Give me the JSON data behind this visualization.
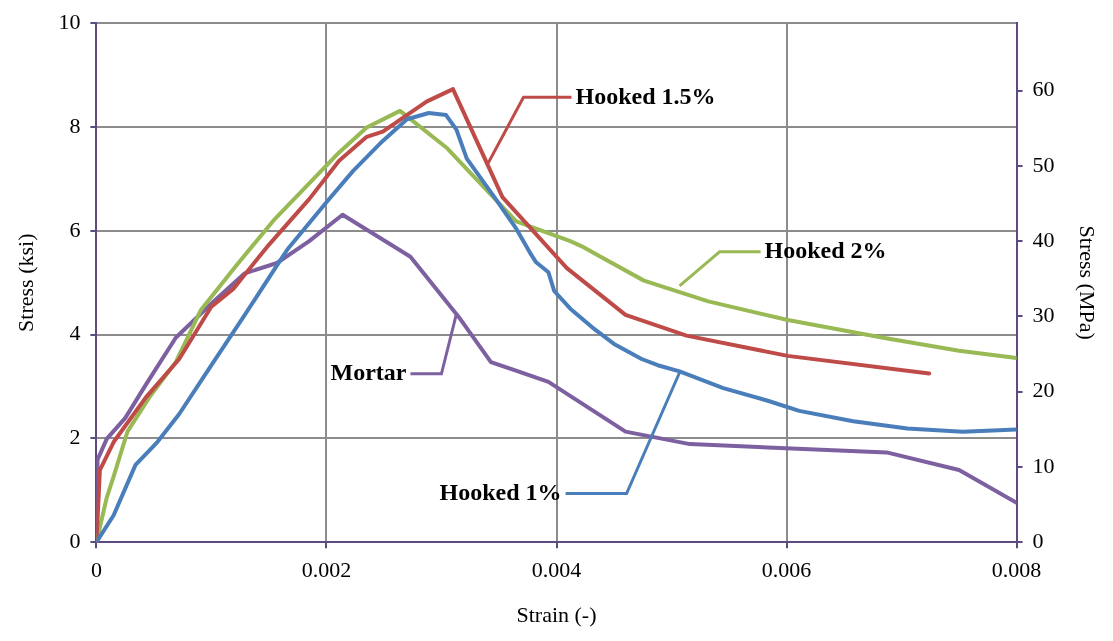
{
  "chart_data": {
    "type": "line",
    "xlabel": "Strain (-)",
    "ylabel": "Stress (ksi)",
    "y2label": "Stress (MPa)",
    "xlim": [
      0,
      0.008
    ],
    "xticks": [
      0,
      0.002,
      0.004,
      0.006,
      0.008
    ],
    "ylim": [
      0,
      10
    ],
    "yticks": [
      0,
      2,
      4,
      6,
      8,
      10
    ],
    "y2lim": [
      0,
      68.95
    ],
    "y2ticks": [
      0,
      10,
      20,
      30,
      40,
      50,
      60
    ],
    "grid": true,
    "marker": "none",
    "line_style": "solid",
    "series": [
      {
        "color": "#4a7ebb",
        "x": [
          0,
          0.00015,
          0.00034,
          0.00053,
          0.00072,
          0.001,
          0.00129,
          0.00166,
          0.002,
          0.00223,
          0.00247,
          0.0027,
          0.00289,
          0.00304,
          0.00313,
          0.00322,
          0.00346,
          0.00365,
          0.00378,
          0.00382,
          0.00393,
          0.00398,
          0.00412,
          0.00431,
          0.0045,
          0.00474,
          0.00488,
          0.00507,
          0.00545,
          0.00583,
          0.00611,
          0.00658,
          0.00705,
          0.00753,
          0.008
        ],
        "values": [
          0,
          0.52,
          1.49,
          1.93,
          2.47,
          3.41,
          4.38,
          5.64,
          6.55,
          7.15,
          7.69,
          8.15,
          8.27,
          8.23,
          7.95,
          7.39,
          6.65,
          6.04,
          5.54,
          5.4,
          5.2,
          4.84,
          4.5,
          4.14,
          3.82,
          3.53,
          3.41,
          3.29,
          2.97,
          2.73,
          2.53,
          2.33,
          2.19,
          2.13,
          2.17
        ]
      },
      {
        "color": "#be4b48",
        "x": [
          0,
          2e-05,
          3e-05,
          0.00015,
          0.00043,
          0.00072,
          0.001,
          0.00119,
          0.00148,
          0.00185,
          0.00211,
          0.00235,
          0.00249,
          0.00287,
          0.0031,
          0.00353,
          0.00409,
          0.0046,
          0.00513,
          0.00601,
          0.00724
        ],
        "values": [
          0,
          0.9,
          1.39,
          1.93,
          2.79,
          3.53,
          4.54,
          4.88,
          5.68,
          6.61,
          7.35,
          7.81,
          7.91,
          8.49,
          8.73,
          6.65,
          5.28,
          4.38,
          3.98,
          3.59,
          3.25
        ]
      },
      {
        "color": "#98b954",
        "x": [
          0,
          9e-05,
          0.00015,
          0.00027,
          0.00046,
          0.00069,
          0.00091,
          0.00122,
          0.00154,
          0.00211,
          0.00235,
          0.00264,
          0.00305,
          0.00365,
          0.00412,
          0.00422,
          0.00476,
          0.00532,
          0.00601,
          0.00684,
          0.0075,
          0.008
        ],
        "values": [
          0,
          0.86,
          1.27,
          2.13,
          2.79,
          3.47,
          4.48,
          5.34,
          6.2,
          7.51,
          7.99,
          8.31,
          7.59,
          6.18,
          5.8,
          5.7,
          5.04,
          4.64,
          4.28,
          3.94,
          3.69,
          3.55
        ]
      },
      {
        "color": "#7d60a0",
        "x": [
          0,
          1e-05,
          9e-05,
          0.00025,
          0.00044,
          0.00069,
          0.001,
          0.00129,
          0.00157,
          0.00185,
          0.00214,
          0.00273,
          0.00315,
          0.00343,
          0.00393,
          0.0046,
          0.00516,
          0.00687,
          0.0075,
          0.008
        ],
        "values": [
          0,
          1.59,
          1.99,
          2.39,
          3.07,
          3.94,
          4.6,
          5.18,
          5.38,
          5.8,
          6.31,
          5.5,
          4.34,
          3.47,
          3.09,
          2.13,
          1.89,
          1.73,
          1.39,
          0.76
        ]
      }
    ],
    "annotations": [
      {
        "text": "Hooked 1.5%",
        "x": 0.0034,
        "y": 7.28
      },
      {
        "text": "Hooked 2%",
        "x": 0.00507,
        "y": 4.94
      },
      {
        "text": "Mortar",
        "x": 0.00313,
        "y": 4.4
      },
      {
        "text": "Hooked 1%",
        "x": 0.00507,
        "y": 3.27
      }
    ]
  }
}
